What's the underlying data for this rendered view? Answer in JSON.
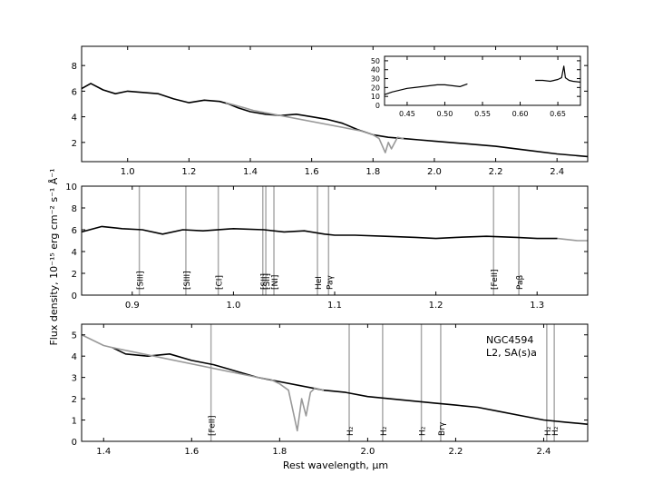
{
  "chart_data": [
    {
      "type": "line",
      "panel": "top",
      "xlim": [
        0.85,
        2.5
      ],
      "ylim": [
        0.5,
        9.5
      ],
      "xticks": [
        "1.0",
        "1.2",
        "1.4",
        "1.6",
        "1.8",
        "2.0",
        "2.2",
        "2.4"
      ],
      "yticks": [
        "2",
        "4",
        "6",
        "8"
      ],
      "series": [
        {
          "color": "#000000",
          "x": [
            0.85,
            0.88,
            0.92,
            0.96,
            1.0,
            1.05,
            1.1,
            1.15,
            1.2,
            1.25,
            1.3,
            1.33,
            1.36,
            1.4,
            1.45,
            1.5,
            1.55,
            1.6,
            1.65,
            1.7,
            1.75,
            1.8,
            1.85,
            1.9,
            1.95,
            2.0,
            2.1,
            2.2,
            2.3,
            2.4,
            2.5
          ],
          "y": [
            6.2,
            6.6,
            6.1,
            5.8,
            6.0,
            5.9,
            5.8,
            5.4,
            5.1,
            5.3,
            5.2,
            5.0,
            4.7,
            4.4,
            4.2,
            4.1,
            4.2,
            4.0,
            3.8,
            3.5,
            3.0,
            2.6,
            2.4,
            2.3,
            2.2,
            2.1,
            1.9,
            1.7,
            1.4,
            1.1,
            0.9
          ]
        },
        {
          "color": "#999999",
          "x": [
            1.32,
            1.35,
            1.38,
            1.41,
            1.76,
            1.8,
            1.82,
            1.84,
            1.85,
            1.86,
            1.88,
            1.9
          ],
          "y": [
            5.1,
            4.9,
            4.7,
            4.5,
            2.9,
            2.6,
            2.3,
            1.2,
            2.0,
            1.5,
            2.4,
            2.3
          ]
        }
      ],
      "inset": {
        "xlim": [
          0.42,
          0.68
        ],
        "ylim": [
          0,
          55
        ],
        "xticks": [
          "0.45",
          "0.50",
          "0.55",
          "0.60",
          "0.65"
        ],
        "yticks": [
          "0",
          "10",
          "20",
          "30",
          "40",
          "50"
        ],
        "series": [
          {
            "color": "#000000",
            "x": [
              0.42,
              0.43,
              0.44,
              0.45,
              0.46,
              0.47,
              0.48,
              0.49,
              0.5,
              0.51,
              0.52,
              0.53
            ],
            "y": [
              12,
              15,
              17,
              19,
              20,
              21,
              22,
              23,
              23,
              22,
              21,
              24
            ]
          },
          {
            "color": "#000000",
            "x": [
              0.62,
              0.63,
              0.64,
              0.65,
              0.655,
              0.658,
              0.66,
              0.665,
              0.67,
              0.68
            ],
            "y": [
              28,
              28,
              27,
              29,
              31,
              44,
              31,
              28,
              27,
              26
            ]
          }
        ]
      }
    },
    {
      "type": "line",
      "panel": "middle",
      "xlim": [
        0.85,
        1.35
      ],
      "ylim": [
        0,
        10
      ],
      "xticks": [
        "0.9",
        "1.0",
        "1.1",
        "1.2",
        "1.3"
      ],
      "yticks": [
        "0",
        "2",
        "4",
        "6",
        "8",
        "10"
      ],
      "ylabel": "Flux density, 10⁻¹⁵ erg  cm⁻²  s⁻¹  Å⁻¹",
      "series": [
        {
          "color": "#000000",
          "x": [
            0.85,
            0.87,
            0.89,
            0.91,
            0.93,
            0.95,
            0.97,
            1.0,
            1.03,
            1.05,
            1.07,
            1.09,
            1.1,
            1.12,
            1.15,
            1.18,
            1.2,
            1.22,
            1.25,
            1.28,
            1.3,
            1.32
          ],
          "y": [
            5.8,
            6.3,
            6.1,
            6.0,
            5.6,
            6.0,
            5.9,
            6.1,
            6.0,
            5.8,
            5.9,
            5.6,
            5.5,
            5.5,
            5.4,
            5.3,
            5.2,
            5.3,
            5.4,
            5.3,
            5.2,
            5.2
          ]
        },
        {
          "color": "#999999",
          "x": [
            1.32,
            1.34,
            1.35
          ],
          "y": [
            5.2,
            5.0,
            5.0
          ]
        }
      ],
      "annotations": [
        {
          "x": 0.907,
          "label": "[SIII]"
        },
        {
          "x": 0.953,
          "label": "[SIII]"
        },
        {
          "x": 0.985,
          "label": "[CI]"
        },
        {
          "x": 1.029,
          "label": "[SII]"
        },
        {
          "x": 1.032,
          "label": "[SII]"
        },
        {
          "x": 1.04,
          "label": "[NI]"
        },
        {
          "x": 1.083,
          "label": "HeI"
        },
        {
          "x": 1.094,
          "label": "Paγ"
        },
        {
          "x": 1.257,
          "label": "[FeII]"
        },
        {
          "x": 1.282,
          "label": "Paβ"
        }
      ]
    },
    {
      "type": "line",
      "panel": "bottom",
      "xlim": [
        1.35,
        2.5
      ],
      "ylim": [
        0,
        5.5
      ],
      "xticks": [
        "1.4",
        "1.6",
        "1.8",
        "2.0",
        "2.2",
        "2.4"
      ],
      "yticks": [
        "0",
        "1",
        "2",
        "3",
        "4",
        "5"
      ],
      "xlabel": "Rest wavelength, μm",
      "series": [
        {
          "color": "#000000",
          "x": [
            1.42,
            1.45,
            1.5,
            1.55,
            1.6,
            1.65,
            1.7,
            1.75,
            1.9,
            1.95,
            2.0,
            2.05,
            2.1,
            2.15,
            2.2,
            2.25,
            2.3,
            2.35,
            2.4,
            2.45,
            2.5
          ],
          "y": [
            4.4,
            4.1,
            4.0,
            4.1,
            3.8,
            3.6,
            3.3,
            3.0,
            2.4,
            2.3,
            2.1,
            2.0,
            1.9,
            1.8,
            1.7,
            1.6,
            1.4,
            1.2,
            1.0,
            0.9,
            0.8
          ]
        },
        {
          "color": "#999999",
          "x": [
            1.35,
            1.37,
            1.4,
            1.42,
            1.75,
            1.78,
            1.8,
            1.82,
            1.84,
            1.85,
            1.86,
            1.87,
            1.88,
            1.9
          ],
          "y": [
            5.0,
            4.8,
            4.5,
            4.4,
            3.0,
            2.9,
            2.7,
            2.4,
            0.5,
            2.0,
            1.2,
            2.3,
            2.5,
            2.4
          ]
        }
      ],
      "annotations": [
        {
          "x": 1.644,
          "label": "[FeII]"
        },
        {
          "x": 1.958,
          "label": "H₂"
        },
        {
          "x": 2.034,
          "label": "H₂"
        },
        {
          "x": 2.122,
          "label": "H₂"
        },
        {
          "x": 2.166,
          "label": "Brγ"
        },
        {
          "x": 2.407,
          "label": "H₂"
        },
        {
          "x": 2.424,
          "label": "H₂"
        }
      ],
      "legend_text": [
        "NGC4594",
        "L2,  SA(s)a"
      ]
    }
  ]
}
